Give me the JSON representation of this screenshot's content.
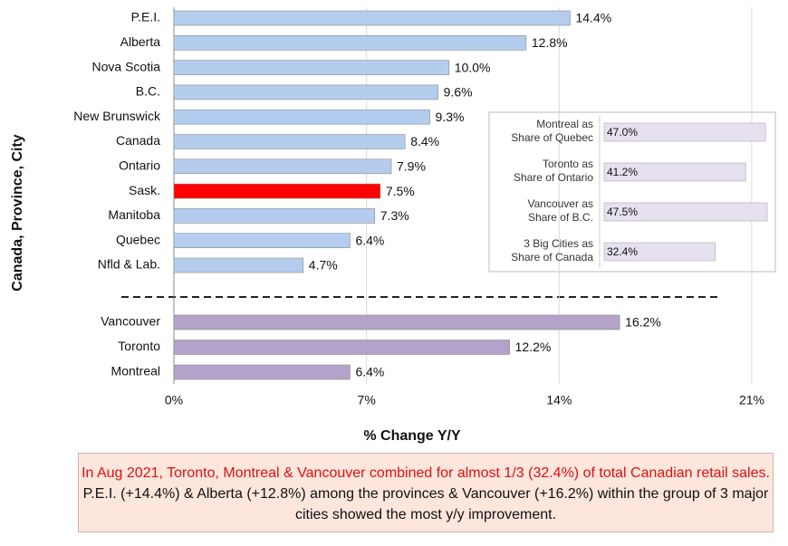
{
  "chart_data": [
    {
      "type": "hbar",
      "y_axis_label": "Canada, Province, City",
      "x_axis_label": "% Change Y/Y",
      "categories": [
        "P.E.I.",
        "Alberta",
        "Nova Scotia",
        "B.C.",
        "New Brunswick",
        "Canada",
        "Ontario",
        "Sask.",
        "Manitoba",
        "Quebec",
        "Nfld & Lab.",
        "Vancouver",
        "Toronto",
        "Montreal"
      ],
      "values": [
        14.4,
        12.8,
        10.0,
        9.6,
        9.3,
        8.4,
        7.9,
        7.5,
        7.3,
        6.4,
        4.7,
        16.2,
        12.2,
        6.4
      ],
      "value_labels": [
        "14.4%",
        "12.8%",
        "10.0%",
        "9.6%",
        "9.3%",
        "8.4%",
        "7.9%",
        "7.5%",
        "7.3%",
        "6.4%",
        "4.7%",
        "16.2%",
        "12.2%",
        "6.4%"
      ],
      "colors": [
        "#b4cdee",
        "#b4cdee",
        "#b4cdee",
        "#b4cdee",
        "#b4cdee",
        "#b4cdee",
        "#b4cdee",
        "#ff0000",
        "#b4cdee",
        "#b4cdee",
        "#b4cdee",
        "#b3a2c9",
        "#b3a2c9",
        "#b3a2c9"
      ],
      "xlim": [
        0,
        21
      ],
      "xticks": [
        {
          "value": 0,
          "label": "0%"
        },
        {
          "value": 7,
          "label": "7%"
        },
        {
          "value": 14,
          "label": "14%"
        },
        {
          "value": 21,
          "label": "21%"
        }
      ],
      "grid": true
    },
    {
      "type": "hbar-inset",
      "categories": [
        "Montreal as\nShare of Quebec",
        "Toronto as\nShare of Ontario",
        "Vancouver as\nShare of B.C.",
        "3 Big Cities as\nShare of Canada"
      ],
      "values": [
        47.0,
        41.2,
        47.5,
        32.4
      ],
      "value_labels": [
        "47.0%",
        "41.2%",
        "47.5%",
        "32.4%"
      ],
      "color": "#e6e0ef"
    }
  ],
  "note": {
    "highlight": "In Aug 2021, Toronto, Montreal & Vancouver combined for almost 1/3 (32.4%) of total Canadian retail sales.",
    "text": "P.E.I. (+14.4%) & Alberta (+12.8%) among the provinces & Vancouver (+16.2%) within the group of 3 major cities showed the most y/y improvement."
  }
}
